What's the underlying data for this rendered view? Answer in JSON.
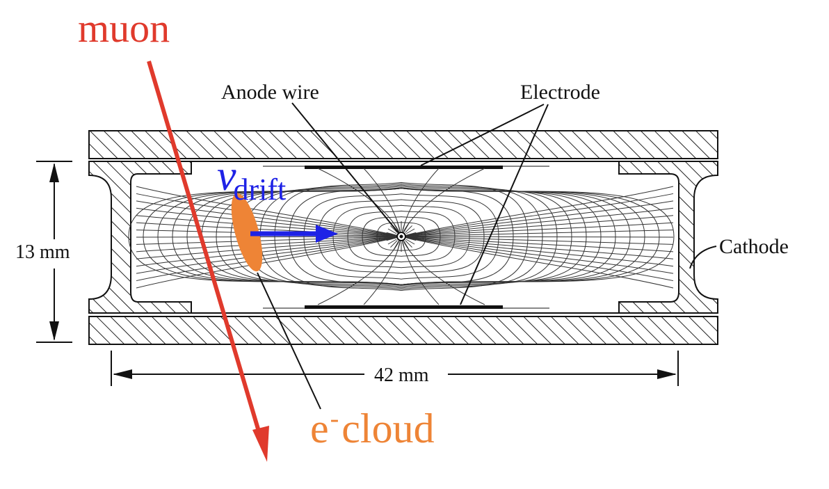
{
  "labels": {
    "muon": "muon",
    "anode_wire": "Anode wire",
    "electrode": "Electrode",
    "cathode": "Cathode",
    "height": "13 mm",
    "width": "42 mm",
    "v_symbol": "v",
    "v_subscript": "drift",
    "e_symbol": "e",
    "e_superscript": "-",
    "cloud_word": "cloud"
  },
  "colors": {
    "muon": "#e03a2c",
    "drift_arrow": "#1e22e6",
    "electron_cloud": "#ee8436",
    "drawing": "#111111"
  }
}
